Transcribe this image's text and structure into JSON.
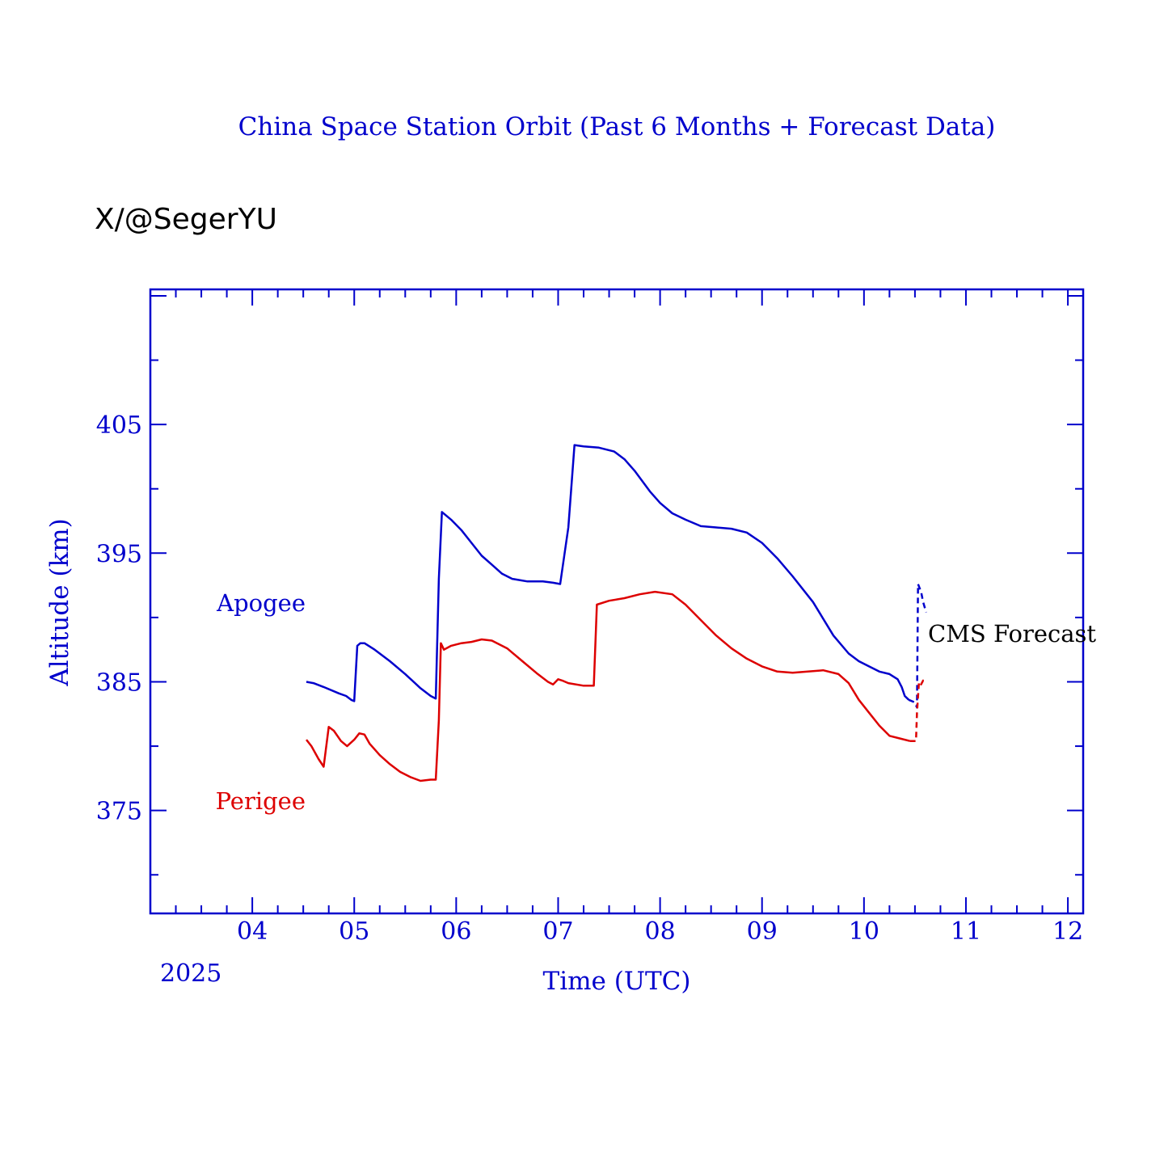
{
  "chart_data": {
    "type": "line",
    "title": "China Space Station Orbit (Past 6 Months + Forecast Data)",
    "credit": "X/@SegerYU",
    "xlabel": "Time (UTC)",
    "ylabel": "Altitude (km)",
    "year_label": "2025",
    "forecast_label": "CMS Forecast",
    "xlim": [
      3,
      12.15
    ],
    "ylim": [
      367,
      415.5
    ],
    "x_ticks": [
      {
        "value": 4,
        "label": "04"
      },
      {
        "value": 5,
        "label": "05"
      },
      {
        "value": 6,
        "label": "06"
      },
      {
        "value": 7,
        "label": "07"
      },
      {
        "value": 8,
        "label": "08"
      },
      {
        "value": 9,
        "label": "09"
      },
      {
        "value": 10,
        "label": "10"
      },
      {
        "value": 11,
        "label": "11"
      },
      {
        "value": 12,
        "label": "12"
      }
    ],
    "y_ticks": [
      {
        "value": 375,
        "label": "375"
      },
      {
        "value": 385,
        "label": "385"
      },
      {
        "value": 395,
        "label": "395"
      },
      {
        "value": 405,
        "label": "405"
      }
    ],
    "grid": false,
    "colors": {
      "axis": "#0000cc",
      "apogee": "#0000cc",
      "perigee": "#dd0000",
      "forecast_text": "#000000"
    },
    "series": [
      {
        "name": "Apogee",
        "color": "#0000cc",
        "style": "solid",
        "points": [
          [
            4.53,
            385.0
          ],
          [
            4.6,
            384.9
          ],
          [
            4.7,
            384.6
          ],
          [
            4.85,
            384.1
          ],
          [
            4.92,
            383.9
          ],
          [
            4.97,
            383.6
          ],
          [
            5.0,
            383.5
          ],
          [
            5.03,
            387.8
          ],
          [
            5.06,
            388.0
          ],
          [
            5.1,
            388.0
          ],
          [
            5.2,
            387.5
          ],
          [
            5.35,
            386.6
          ],
          [
            5.5,
            385.6
          ],
          [
            5.65,
            384.5
          ],
          [
            5.75,
            383.9
          ],
          [
            5.8,
            383.7
          ],
          [
            5.83,
            393.0
          ],
          [
            5.86,
            398.2
          ],
          [
            5.95,
            397.6
          ],
          [
            6.05,
            396.8
          ],
          [
            6.15,
            395.8
          ],
          [
            6.25,
            394.8
          ],
          [
            6.35,
            394.1
          ],
          [
            6.45,
            393.4
          ],
          [
            6.55,
            393.0
          ],
          [
            6.7,
            392.8
          ],
          [
            6.85,
            392.8
          ],
          [
            6.95,
            392.7
          ],
          [
            7.02,
            392.6
          ],
          [
            7.1,
            397.0
          ],
          [
            7.16,
            403.4
          ],
          [
            7.25,
            403.3
          ],
          [
            7.4,
            403.2
          ],
          [
            7.55,
            402.9
          ],
          [
            7.65,
            402.3
          ],
          [
            7.75,
            401.4
          ],
          [
            7.9,
            399.8
          ],
          [
            8.0,
            398.9
          ],
          [
            8.12,
            398.1
          ],
          [
            8.25,
            397.6
          ],
          [
            8.4,
            397.1
          ],
          [
            8.55,
            397.0
          ],
          [
            8.7,
            396.9
          ],
          [
            8.85,
            396.6
          ],
          [
            9.0,
            395.8
          ],
          [
            9.15,
            394.6
          ],
          [
            9.3,
            393.2
          ],
          [
            9.5,
            391.2
          ],
          [
            9.7,
            388.6
          ],
          [
            9.85,
            387.2
          ],
          [
            9.95,
            386.6
          ],
          [
            10.05,
            386.2
          ],
          [
            10.15,
            385.8
          ],
          [
            10.25,
            385.6
          ],
          [
            10.33,
            385.2
          ],
          [
            10.37,
            384.6
          ],
          [
            10.4,
            383.9
          ],
          [
            10.44,
            383.6
          ]
        ]
      },
      {
        "name": "Apogee forecast",
        "color": "#0000cc",
        "style": "dashed",
        "points": [
          [
            10.44,
            383.6
          ],
          [
            10.5,
            383.4
          ],
          [
            10.52,
            383.0
          ],
          [
            10.53,
            392.6
          ],
          [
            10.56,
            392.0
          ],
          [
            10.58,
            391.2
          ],
          [
            10.61,
            390.4
          ]
        ]
      },
      {
        "name": "Perigee",
        "color": "#dd0000",
        "style": "solid",
        "points": [
          [
            4.53,
            380.5
          ],
          [
            4.58,
            380.0
          ],
          [
            4.65,
            379.0
          ],
          [
            4.7,
            378.4
          ],
          [
            4.75,
            381.5
          ],
          [
            4.8,
            381.2
          ],
          [
            4.87,
            380.4
          ],
          [
            4.93,
            380.0
          ],
          [
            5.0,
            380.5
          ],
          [
            5.05,
            381.0
          ],
          [
            5.1,
            380.9
          ],
          [
            5.15,
            380.2
          ],
          [
            5.25,
            379.3
          ],
          [
            5.35,
            378.6
          ],
          [
            5.45,
            378.0
          ],
          [
            5.55,
            377.6
          ],
          [
            5.65,
            377.3
          ],
          [
            5.75,
            377.4
          ],
          [
            5.8,
            377.4
          ],
          [
            5.83,
            382.0
          ],
          [
            5.85,
            388.0
          ],
          [
            5.88,
            387.5
          ],
          [
            5.95,
            387.8
          ],
          [
            6.05,
            388.0
          ],
          [
            6.15,
            388.1
          ],
          [
            6.25,
            388.3
          ],
          [
            6.35,
            388.2
          ],
          [
            6.5,
            387.6
          ],
          [
            6.65,
            386.6
          ],
          [
            6.8,
            385.6
          ],
          [
            6.9,
            385.0
          ],
          [
            6.95,
            384.8
          ],
          [
            7.0,
            385.2
          ],
          [
            7.04,
            385.1
          ],
          [
            7.1,
            384.9
          ],
          [
            7.25,
            384.7
          ],
          [
            7.35,
            384.7
          ],
          [
            7.38,
            391.0
          ],
          [
            7.5,
            391.3
          ],
          [
            7.65,
            391.5
          ],
          [
            7.8,
            391.8
          ],
          [
            7.95,
            392.0
          ],
          [
            8.12,
            391.8
          ],
          [
            8.25,
            391.0
          ],
          [
            8.4,
            389.8
          ],
          [
            8.55,
            388.6
          ],
          [
            8.7,
            387.6
          ],
          [
            8.85,
            386.8
          ],
          [
            9.0,
            386.2
          ],
          [
            9.15,
            385.8
          ],
          [
            9.3,
            385.7
          ],
          [
            9.45,
            385.8
          ],
          [
            9.6,
            385.9
          ],
          [
            9.75,
            385.6
          ],
          [
            9.85,
            384.9
          ],
          [
            9.95,
            383.6
          ],
          [
            10.05,
            382.6
          ],
          [
            10.15,
            381.6
          ],
          [
            10.25,
            380.8
          ],
          [
            10.35,
            380.6
          ],
          [
            10.45,
            380.4
          ]
        ]
      },
      {
        "name": "Perigee forecast",
        "color": "#dd0000",
        "style": "dashed",
        "points": [
          [
            10.45,
            380.4
          ],
          [
            10.51,
            380.4
          ],
          [
            10.52,
            382.6
          ],
          [
            10.54,
            385.0
          ],
          [
            10.56,
            384.8
          ],
          [
            10.58,
            385.1
          ],
          [
            10.6,
            385.0
          ]
        ]
      }
    ],
    "legend": [
      {
        "label": "Apogee",
        "color": "#0000cc"
      },
      {
        "label": "Perigee",
        "color": "#dd0000"
      }
    ]
  }
}
